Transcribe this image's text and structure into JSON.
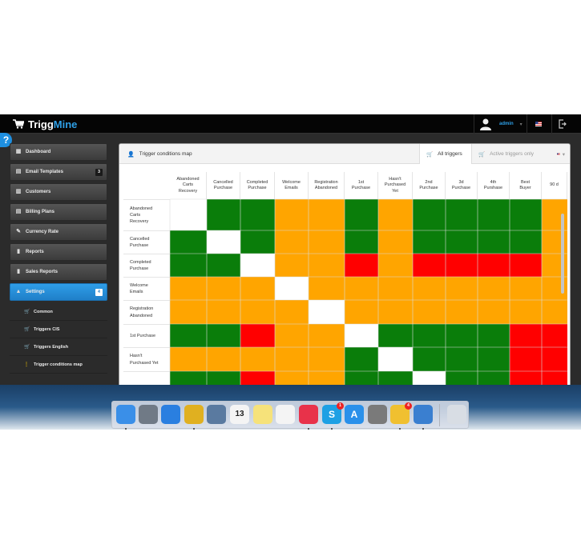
{
  "app": {
    "brand_part1": "Trigg",
    "brand_part2": "Mine"
  },
  "header": {
    "user_name": "admin",
    "help_label": "?"
  },
  "sidebar": {
    "items": [
      {
        "label": "Dashboard",
        "icon": "dashboard-icon",
        "glyph": "▦"
      },
      {
        "label": "Email Templates",
        "icon": "email-templates-icon",
        "glyph": "▤",
        "badge": "3"
      },
      {
        "label": "Customers",
        "icon": "customers-icon",
        "glyph": "▥"
      },
      {
        "label": "Billing Plans",
        "icon": "billing-plans-icon",
        "glyph": "▤"
      },
      {
        "label": "Currency Rate",
        "icon": "currency-rate-icon",
        "glyph": "✎"
      },
      {
        "label": "Reports",
        "icon": "reports-icon",
        "glyph": "▮"
      },
      {
        "label": "Sales Reports",
        "icon": "sales-reports-icon",
        "glyph": "▮"
      },
      {
        "label": "Settings",
        "icon": "settings-icon",
        "glyph": "▲",
        "badge": "4",
        "active": true
      }
    ],
    "subitems": [
      {
        "label": "Common",
        "icon": "cart-icon",
        "glyph": "🛒"
      },
      {
        "label": "Triggers CIS",
        "icon": "cart-icon",
        "glyph": "🛒"
      },
      {
        "label": "Triggers English",
        "icon": "cart-icon",
        "glyph": "🛒"
      },
      {
        "label": "Trigger conditions map",
        "icon": "map-icon",
        "glyph": "⋮",
        "current": true
      }
    ]
  },
  "panel": {
    "title": "Trigger conditions map",
    "tabs": {
      "all": "All triggers",
      "active": "Active triggers only"
    }
  },
  "matrix": {
    "columns": [
      "Abandoned\nCarts\nRecovery",
      "Cancelled\nPurchase",
      "Completed\nPurchase",
      "Welcome\nEmails",
      "Registration\nAbandoned",
      "1st\nPurchase",
      "Hasn't\nPurchased\nYet",
      "2nd\nPurchase",
      "3d\nPurchase",
      "4th\nPurshase",
      "Best\nBuyer",
      "90 d"
    ],
    "rows": [
      {
        "label": "Abandoned\nCarts\nRecovery",
        "cells": [
          "W",
          "G",
          "G",
          "O",
          "O",
          "G",
          "O",
          "G",
          "G",
          "G",
          "G",
          "O"
        ]
      },
      {
        "label": "Cancelled\nPurchase",
        "cells": [
          "G",
          "W",
          "G",
          "O",
          "O",
          "G",
          "O",
          "G",
          "G",
          "G",
          "G",
          "O"
        ]
      },
      {
        "label": "Completed\nPurchase",
        "cells": [
          "G",
          "G",
          "W",
          "O",
          "O",
          "R",
          "O",
          "R",
          "R",
          "R",
          "R",
          "O"
        ]
      },
      {
        "label": "Welcome\nEmails",
        "cells": [
          "O",
          "O",
          "O",
          "W",
          "O",
          "O",
          "O",
          "O",
          "O",
          "O",
          "O",
          "O"
        ]
      },
      {
        "label": "Registration\nAbandoned",
        "cells": [
          "O",
          "O",
          "O",
          "O",
          "W",
          "O",
          "O",
          "O",
          "O",
          "O",
          "O",
          "O"
        ]
      },
      {
        "label": "1st Purchase",
        "cells": [
          "G",
          "G",
          "R",
          "O",
          "O",
          "W",
          "G",
          "G",
          "G",
          "G",
          "R",
          "R"
        ]
      },
      {
        "label": "Hasn't\nPurchased Yet",
        "cells": [
          "O",
          "O",
          "O",
          "O",
          "O",
          "G",
          "W",
          "G",
          "G",
          "G",
          "R",
          "R"
        ]
      },
      {
        "label": "",
        "cells": [
          "G",
          "G",
          "R",
          "O",
          "O",
          "G",
          "G",
          "W",
          "G",
          "G",
          "R",
          "R"
        ]
      }
    ],
    "legend_colors": {
      "G": "#0a7d0a",
      "O": "#ffa500",
      "R": "#ff0000",
      "W": "#ffffff"
    }
  },
  "dock": {
    "apps": [
      {
        "icon": "finder-icon",
        "color": "#3a8fe8",
        "running": true
      },
      {
        "icon": "launchpad-icon",
        "color": "#707a86"
      },
      {
        "icon": "safari-icon",
        "color": "#2a7fe0"
      },
      {
        "icon": "chrome-icon",
        "color": "#e0b020",
        "running": true
      },
      {
        "icon": "preview-icon",
        "color": "#5a7aa0"
      },
      {
        "icon": "calendar-icon",
        "color": "#f4f4f4",
        "text": "13"
      },
      {
        "icon": "notes-icon",
        "color": "#f6e27a"
      },
      {
        "icon": "reminders-icon",
        "color": "#f4f4f4"
      },
      {
        "icon": "itunes-icon",
        "color": "#e8324a",
        "running": true
      },
      {
        "icon": "skype-icon",
        "color": "#1ea0e4",
        "badge": "1",
        "running": true,
        "text": "S"
      },
      {
        "icon": "app-store-icon",
        "color": "#2a90ea",
        "text": "A"
      },
      {
        "icon": "system-preferences-icon",
        "color": "#7a7a7a"
      },
      {
        "icon": "mail-icon",
        "color": "#f0c030",
        "badge": "4",
        "running": true
      },
      {
        "icon": "keynote-icon",
        "color": "#3a7fd0",
        "running": true
      },
      {
        "icon": "trash-icon",
        "color": "#d8dde4"
      }
    ]
  }
}
